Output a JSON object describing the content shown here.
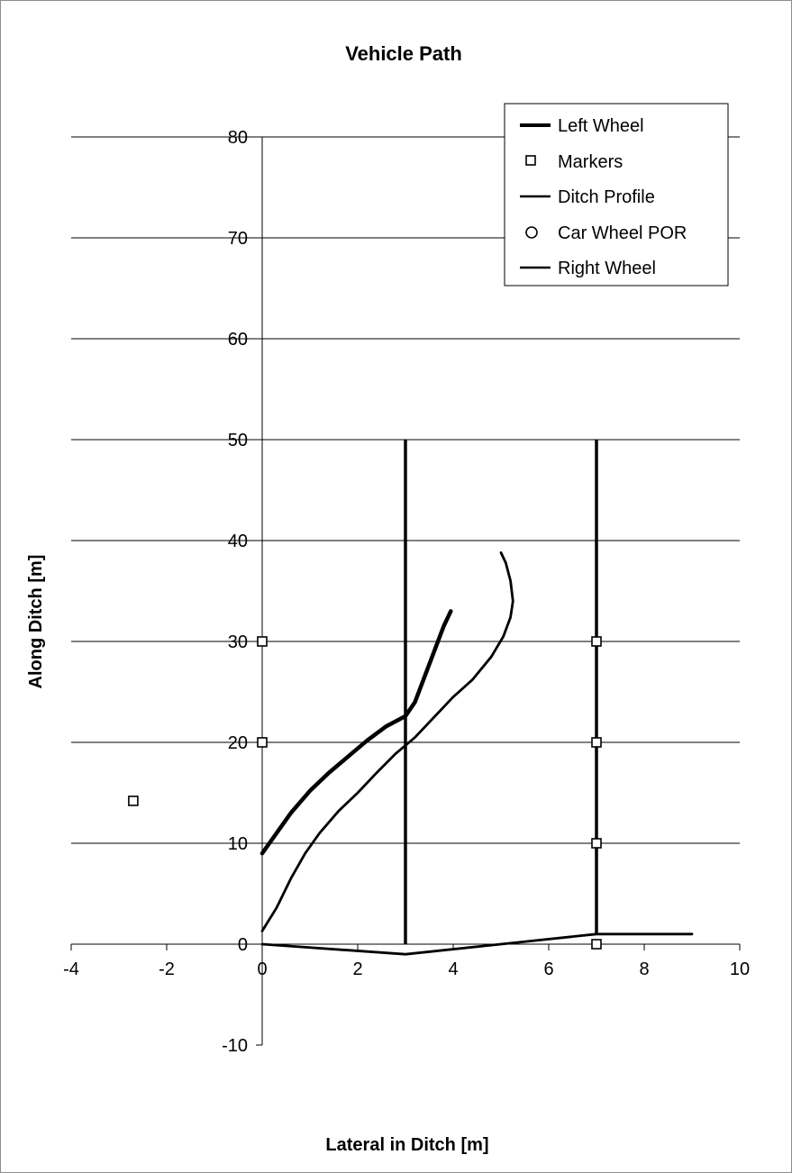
{
  "chart_data": {
    "type": "scatter",
    "title": "Vehicle Path",
    "xlabel": "Lateral in Ditch [m]",
    "ylabel": "Along Ditch [m]",
    "xlim": [
      -4,
      10
    ],
    "ylim": [
      -10,
      80
    ],
    "x_ticks": [
      -4,
      -2,
      0,
      2,
      4,
      6,
      8,
      10
    ],
    "y_ticks": [
      -10,
      0,
      10,
      20,
      30,
      40,
      50,
      60,
      70,
      80
    ],
    "grid": "horizontal major gridlines",
    "legend_position": "top-right",
    "series": [
      {
        "name": "Left Wheel",
        "style": "thick-line",
        "x": [
          0.0,
          0.3,
          0.6,
          1.0,
          1.4,
          1.8,
          2.2,
          2.6,
          3.0,
          3.2,
          3.4,
          3.6,
          3.8,
          3.95
        ],
        "y": [
          9.0,
          11.0,
          13.0,
          15.2,
          17.0,
          18.6,
          20.2,
          21.6,
          22.6,
          24.0,
          26.5,
          29.0,
          31.5,
          33.0
        ]
      },
      {
        "name": "Markers",
        "style": "square",
        "x": [
          -2.7,
          0,
          0,
          7,
          7,
          7,
          7
        ],
        "y": [
          14.2,
          20,
          30,
          0,
          10,
          20,
          30
        ]
      },
      {
        "name": "Ditch Profile",
        "style": "line",
        "x": [
          0,
          3,
          5,
          7,
          9
        ],
        "y": [
          0,
          -1,
          0,
          1,
          1
        ]
      },
      {
        "name": "Car Wheel POR",
        "style": "circle",
        "x": [],
        "y": []
      },
      {
        "name": "Right Wheel",
        "style": "line",
        "x": [
          0.0,
          0.3,
          0.6,
          0.9,
          1.2,
          1.6,
          2.0,
          2.4,
          2.8,
          3.2,
          3.6,
          4.0,
          4.4,
          4.8,
          5.05,
          5.2,
          5.25,
          5.2,
          5.1,
          5.0
        ],
        "y": [
          1.3,
          3.6,
          6.5,
          9.0,
          11.0,
          13.2,
          15.0,
          17.0,
          18.9,
          20.5,
          22.5,
          24.5,
          26.2,
          28.5,
          30.5,
          32.4,
          34.0,
          36.0,
          37.8,
          38.8
        ]
      }
    ],
    "reference_lines": [
      {
        "x": [
          3,
          3
        ],
        "y": [
          0,
          50
        ]
      },
      {
        "x": [
          7,
          7
        ],
        "y": [
          1,
          50
        ]
      }
    ]
  }
}
